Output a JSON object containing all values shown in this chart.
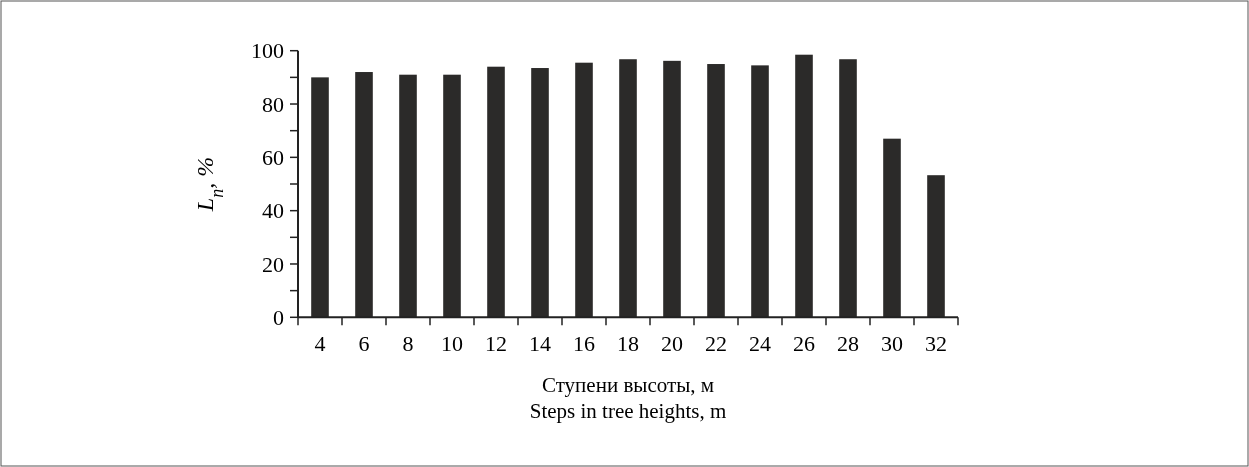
{
  "chart_data": {
    "type": "bar",
    "categories": [
      "4",
      "6",
      "8",
      "10",
      "12",
      "14",
      "16",
      "18",
      "20",
      "22",
      "24",
      "26",
      "28",
      "30",
      "32"
    ],
    "values": [
      90,
      92,
      91,
      91,
      94,
      93.5,
      95.5,
      96.8,
      96.2,
      95,
      94.5,
      98.5,
      96.8,
      67,
      53.3
    ],
    "color": "#2b2a29",
    "ylim": [
      0,
      100
    ],
    "yticks": [
      0,
      {
        "value": 10,
        "label": null
      },
      20,
      {
        "value": 30,
        "label": null
      },
      40,
      {
        "value": 50,
        "label": null
      },
      60,
      {
        "value": 70,
        "label": null
      },
      80,
      {
        "value": 90,
        "label": null
      },
      100
    ],
    "ylabel": "L$_{n}$, %",
    "xlabel": "Ступени высоты, м\nSteps in tree heights, m"
  }
}
